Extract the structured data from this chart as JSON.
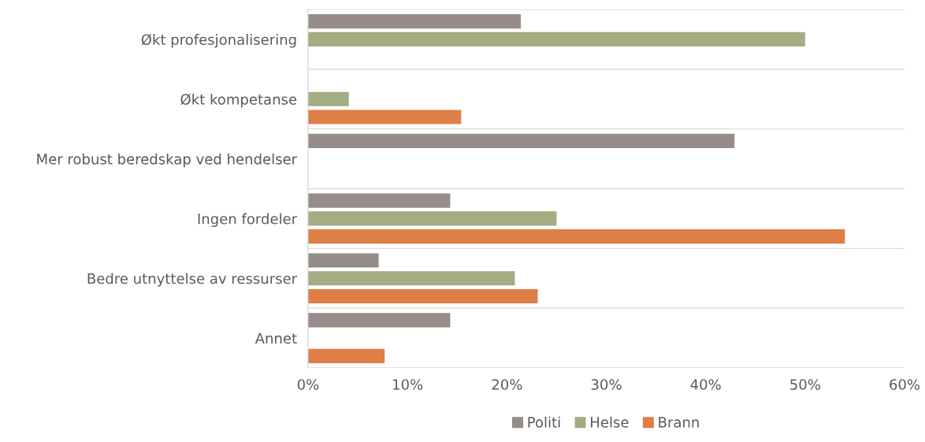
{
  "chart_data": {
    "type": "bar",
    "orientation": "horizontal",
    "categories": [
      "Økt profesjonalisering",
      "Økt kompetanse",
      "Mer robust beredskap ved hendelser",
      "Ingen fordeler",
      "Bedre utnyttelse av ressurser",
      "Annet"
    ],
    "series": [
      {
        "name": "Politi",
        "color": "#968d8b",
        "values": [
          21.4,
          null,
          42.9,
          14.3,
          7.1,
          14.3
        ]
      },
      {
        "name": "Helse",
        "color": "#a3ac82",
        "values": [
          50,
          4.1,
          null,
          25,
          20.8,
          null
        ]
      },
      {
        "name": "Brann",
        "color": "#dd7f47",
        "values": [
          null,
          15.4,
          null,
          54,
          23.1,
          7.7
        ]
      }
    ],
    "xlim": [
      0,
      60
    ],
    "xticks": [
      {
        "value": 0,
        "label": "0%"
      },
      {
        "value": 10,
        "label": "10%"
      },
      {
        "value": 20,
        "label": "20%"
      },
      {
        "value": 30,
        "label": "30%"
      },
      {
        "value": 40,
        "label": "40%"
      },
      {
        "value": 50,
        "label": "50%"
      },
      {
        "value": 60,
        "label": "60%"
      }
    ],
    "grid": "y",
    "legend": "bottom"
  }
}
